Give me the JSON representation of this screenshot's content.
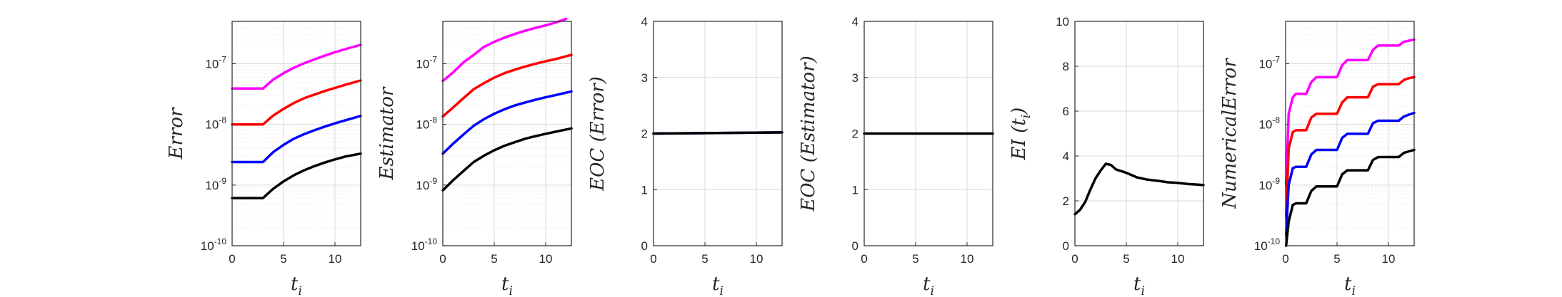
{
  "chart_data": [
    {
      "type": "line",
      "ylabel": "Error",
      "xlabel": "t_i",
      "yscale": "log",
      "xlim": [
        0,
        12.5
      ],
      "ylim": [
        1e-10,
        5e-07
      ],
      "yticks": [
        1e-10,
        1e-09,
        1e-08,
        1e-07
      ],
      "yticklabels": [
        "10-10",
        "10-9",
        "10-8",
        "10-7"
      ],
      "xticks": [
        0,
        5,
        10
      ],
      "xticklabels": [
        "0",
        "5",
        "10"
      ],
      "grid": true,
      "series": [
        {
          "color": "#ff00ff",
          "x": [
            0,
            3,
            4,
            5,
            6,
            7,
            8,
            9,
            10,
            11,
            12.5
          ],
          "y": [
            3.9e-08,
            3.9e-08,
            5.5e-08,
            7e-08,
            8.6e-08,
            1.02e-07,
            1.18e-07,
            1.36e-07,
            1.55e-07,
            1.74e-07,
            2.05e-07
          ]
        },
        {
          "color": "#ff0000",
          "x": [
            0,
            3,
            4,
            5,
            6,
            7,
            8,
            9,
            10,
            11,
            12.5
          ],
          "y": [
            1e-08,
            1e-08,
            1.4e-08,
            1.8e-08,
            2.25e-08,
            2.7e-08,
            3.1e-08,
            3.55e-08,
            4e-08,
            4.5e-08,
            5.3e-08
          ]
        },
        {
          "color": "#0000ff",
          "x": [
            0,
            3,
            4,
            5,
            6,
            7,
            8,
            9,
            10,
            11,
            12.5
          ],
          "y": [
            2.4e-09,
            2.4e-09,
            3.5e-09,
            4.6e-09,
            5.8e-09,
            6.9e-09,
            8e-09,
            9.2e-09,
            1.04e-08,
            1.17e-08,
            1.38e-08
          ]
        },
        {
          "color": "#000000",
          "x": [
            0,
            3,
            4,
            5,
            6,
            7,
            8,
            9,
            10,
            11,
            12.5
          ],
          "y": [
            6.1e-10,
            6.1e-10,
            8.7e-10,
            1.15e-09,
            1.45e-09,
            1.75e-09,
            2.05e-09,
            2.35e-09,
            2.65e-09,
            2.95e-09,
            3.3e-09
          ]
        }
      ]
    },
    {
      "type": "line",
      "ylabel": "Estimator",
      "xlabel": "t_i",
      "yscale": "log",
      "xlim": [
        0,
        12.5
      ],
      "ylim": [
        1e-10,
        5e-07
      ],
      "yticks": [
        1e-10,
        1e-09,
        1e-08,
        1e-07
      ],
      "yticklabels": [
        "10-10",
        "10-9",
        "10-8",
        "10-7"
      ],
      "xticks": [
        0,
        5,
        10
      ],
      "xticklabels": [
        "0",
        "5",
        "10"
      ],
      "grid": true,
      "series": [
        {
          "color": "#ff00ff",
          "x": [
            0,
            1,
            2,
            3,
            4,
            5,
            6,
            7,
            8,
            9,
            10,
            11,
            12
          ],
          "y": [
            5.2e-08,
            7.2e-08,
            1.05e-07,
            1.4e-07,
            1.9e-07,
            2.3e-07,
            2.7e-07,
            3.1e-07,
            3.5e-07,
            3.9e-07,
            4.3e-07,
            4.8e-07,
            5.5e-07
          ]
        },
        {
          "color": "#ff0000",
          "x": [
            0,
            1,
            2,
            3,
            4,
            5,
            6,
            7,
            8,
            9,
            10,
            11,
            12.5
          ],
          "y": [
            1.35e-08,
            1.9e-08,
            2.7e-08,
            3.8e-08,
            4.8e-08,
            5.9e-08,
            7e-08,
            8e-08,
            9e-08,
            1e-07,
            1.1e-07,
            1.2e-07,
            1.4e-07
          ]
        },
        {
          "color": "#0000ff",
          "x": [
            0,
            1,
            2,
            3,
            4,
            5,
            6,
            7,
            8,
            9,
            10,
            11,
            12.5
          ],
          "y": [
            3.3e-09,
            4.8e-09,
            6.8e-09,
            9.5e-09,
            1.22e-08,
            1.5e-08,
            1.78e-08,
            2.05e-08,
            2.3e-08,
            2.55e-08,
            2.8e-08,
            3.05e-08,
            3.5e-08
          ]
        },
        {
          "color": "#000000",
          "x": [
            0,
            1,
            2,
            3,
            4,
            5,
            6,
            7,
            8,
            9,
            10,
            11,
            12.5
          ],
          "y": [
            8.2e-10,
            1.2e-09,
            1.7e-09,
            2.4e-09,
            3.05e-09,
            3.75e-09,
            4.45e-09,
            5.1e-09,
            5.8e-09,
            6.4e-09,
            7e-09,
            7.6e-09,
            8.6e-09
          ]
        }
      ]
    },
    {
      "type": "line",
      "ylabel": "EOC (Error)",
      "xlabel": "t_i",
      "yscale": "linear",
      "xlim": [
        0,
        12.5
      ],
      "ylim": [
        0,
        4
      ],
      "yticks": [
        0,
        1,
        2,
        3,
        4
      ],
      "yticklabels": [
        "0",
        "1",
        "2",
        "3",
        "4"
      ],
      "xticks": [
        0,
        5,
        10
      ],
      "xticklabels": [
        "0",
        "5",
        "10"
      ],
      "grid": true,
      "series": [
        {
          "color": "#0000ff",
          "x": [
            0,
            12.5
          ],
          "y": [
            2.0,
            2.02
          ]
        },
        {
          "color": "#000000",
          "x": [
            0,
            12.5
          ],
          "y": [
            2.0,
            2.02
          ]
        }
      ]
    },
    {
      "type": "line",
      "ylabel": "EOC (Estimator)",
      "xlabel": "t_i",
      "yscale": "linear",
      "xlim": [
        0,
        12.5
      ],
      "ylim": [
        0,
        4
      ],
      "yticks": [
        0,
        1,
        2,
        3,
        4
      ],
      "yticklabels": [
        "0",
        "1",
        "2",
        "3",
        "4"
      ],
      "xticks": [
        0,
        5,
        10
      ],
      "xticklabels": [
        "0",
        "5",
        "10"
      ],
      "grid": true,
      "series": [
        {
          "color": "#000000",
          "x": [
            0,
            12.5
          ],
          "y": [
            2.0,
            2.0
          ]
        }
      ]
    },
    {
      "type": "line",
      "ylabel": "EI (t_i)",
      "xlabel": "t_i",
      "yscale": "linear",
      "xlim": [
        0,
        12.5
      ],
      "ylim": [
        0,
        10
      ],
      "yticks": [
        0,
        2,
        4,
        6,
        8,
        10
      ],
      "yticklabels": [
        "0",
        "2",
        "4",
        "6",
        "8",
        "10"
      ],
      "xticks": [
        0,
        5,
        10
      ],
      "xticklabels": [
        "0",
        "5",
        "10"
      ],
      "grid": true,
      "series": [
        {
          "color": "#000000",
          "x": [
            0,
            0.5,
            1,
            1.5,
            2,
            2.5,
            3,
            3.5,
            4,
            5,
            6,
            7,
            8,
            9,
            10,
            11,
            12,
            12.5
          ],
          "y": [
            1.4,
            1.6,
            1.95,
            2.5,
            3.0,
            3.35,
            3.65,
            3.6,
            3.4,
            3.25,
            3.05,
            2.95,
            2.9,
            2.83,
            2.8,
            2.75,
            2.72,
            2.7
          ]
        }
      ]
    },
    {
      "type": "line",
      "ylabel": "NumericalError",
      "xlabel": "t_i",
      "yscale": "log",
      "xlim": [
        0,
        12.5
      ],
      "ylim": [
        1e-10,
        5e-07
      ],
      "yticks": [
        1e-10,
        1e-09,
        1e-08,
        1e-07
      ],
      "yticklabels": [
        "10-10",
        "10-9",
        "10-8",
        "10-7"
      ],
      "xticks": [
        0,
        5,
        10
      ],
      "xticklabels": [
        "0",
        "5",
        "10"
      ],
      "grid": true,
      "series": [
        {
          "color": "#ff00ff",
          "x": [
            0.05,
            0.3,
            0.7,
            1.0,
            2.0,
            2.5,
            3.0,
            5.0,
            5.5,
            6.0,
            8.0,
            8.5,
            9.0,
            11.0,
            11.5,
            12.0,
            12.5
          ],
          "y": [
            1e-09,
            1.5e-08,
            2.8e-08,
            3.2e-08,
            3.2e-08,
            5e-08,
            6e-08,
            6e-08,
            9.5e-08,
            1.15e-07,
            1.15e-07,
            1.7e-07,
            2e-07,
            2e-07,
            2.3e-07,
            2.4e-07,
            2.5e-07
          ]
        },
        {
          "color": "#ff0000",
          "x": [
            0.05,
            0.3,
            0.7,
            1.0,
            2.0,
            2.5,
            3.0,
            5.0,
            5.5,
            6.0,
            8.0,
            8.5,
            9.0,
            11.0,
            11.5,
            12.0,
            12.5
          ],
          "y": [
            3e-10,
            4e-09,
            7.5e-09,
            8e-09,
            8e-09,
            1.3e-08,
            1.5e-08,
            1.5e-08,
            2.3e-08,
            2.8e-08,
            2.8e-08,
            4.2e-08,
            4.6e-08,
            4.6e-08,
            5.4e-08,
            5.8e-08,
            6e-08
          ]
        },
        {
          "color": "#0000ff",
          "x": [
            0.05,
            0.3,
            0.7,
            1.0,
            2.0,
            2.5,
            3.0,
            5.0,
            5.5,
            6.0,
            8.0,
            8.5,
            9.0,
            11.0,
            11.5,
            12.0,
            12.5
          ],
          "y": [
            1.5e-10,
            1e-09,
            1.9e-09,
            2e-09,
            2e-09,
            3.2e-09,
            3.8e-09,
            3.8e-09,
            6e-09,
            7e-09,
            7e-09,
            1.05e-08,
            1.15e-08,
            1.15e-08,
            1.35e-08,
            1.45e-08,
            1.55e-08
          ]
        },
        {
          "color": "#000000",
          "x": [
            0.05,
            0.3,
            0.7,
            1.0,
            2.0,
            2.5,
            3.0,
            5.0,
            5.5,
            6.0,
            8.0,
            8.5,
            9.0,
            11.0,
            11.5,
            12.0,
            12.5
          ],
          "y": [
            1e-10,
            2.5e-10,
            4.7e-10,
            5e-10,
            5e-10,
            8e-10,
            9.5e-10,
            9.5e-10,
            1.5e-09,
            1.75e-09,
            1.75e-09,
            2.6e-09,
            2.9e-09,
            2.9e-09,
            3.4e-09,
            3.6e-09,
            3.8e-09
          ]
        }
      ]
    }
  ]
}
